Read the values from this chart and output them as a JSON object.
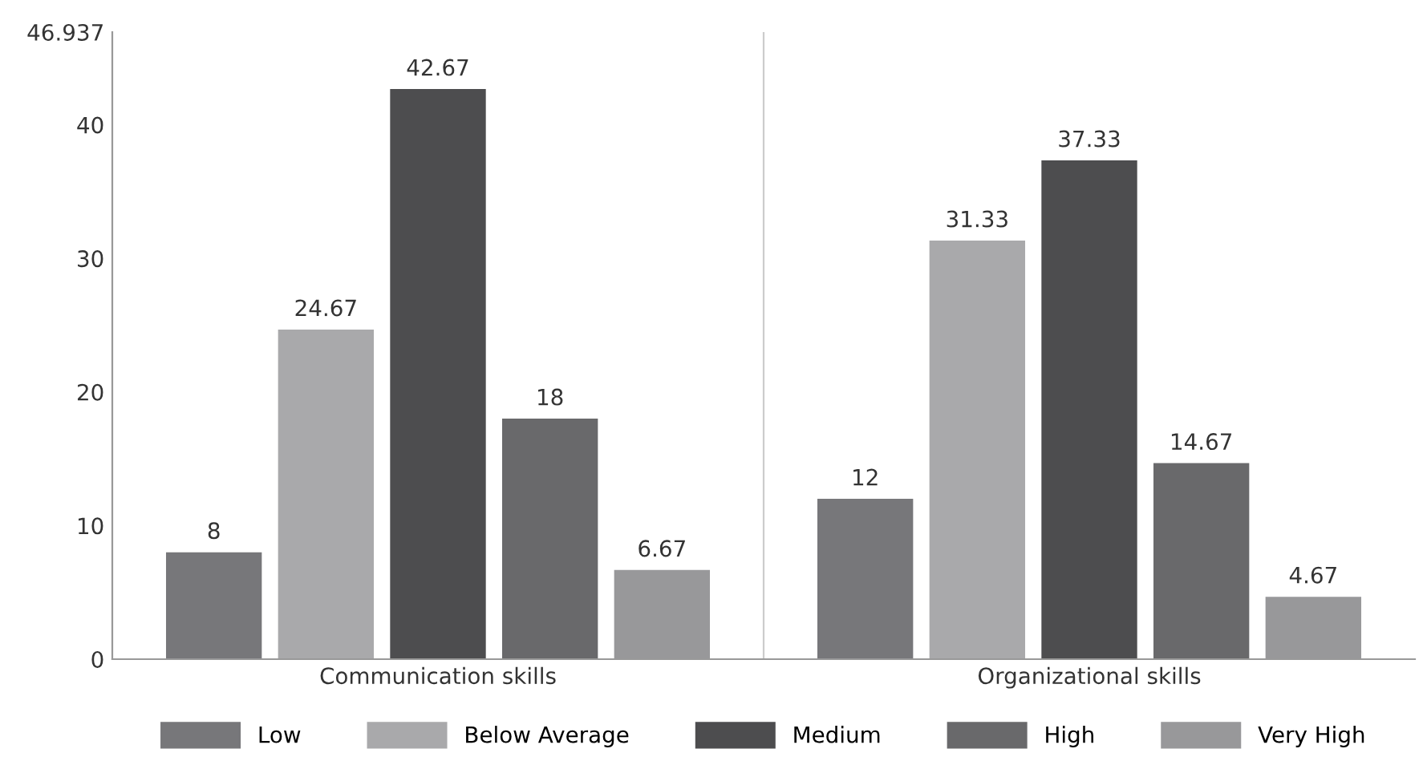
{
  "chart_data": {
    "type": "bar",
    "categories": [
      "Communication skills",
      "Organizational skills"
    ],
    "series": [
      {
        "name": "Low",
        "color": "#77777a",
        "values": [
          8,
          12
        ]
      },
      {
        "name": "Below Average",
        "color": "#a9a9ab",
        "values": [
          24.67,
          31.33
        ]
      },
      {
        "name": "Medium",
        "color": "#4d4d4f",
        "values": [
          42.67,
          37.33
        ]
      },
      {
        "name": "High",
        "color": "#69696b",
        "values": [
          18,
          14.67
        ]
      },
      {
        "name": "Very High",
        "color": "#98989a",
        "values": [
          6.67,
          4.67
        ]
      }
    ],
    "ylim": [
      0,
      46.937
    ],
    "yticks": [
      0,
      10,
      20,
      30,
      40,
      46.937
    ],
    "data_labels": true,
    "legend": "bottom",
    "grid": false
  }
}
